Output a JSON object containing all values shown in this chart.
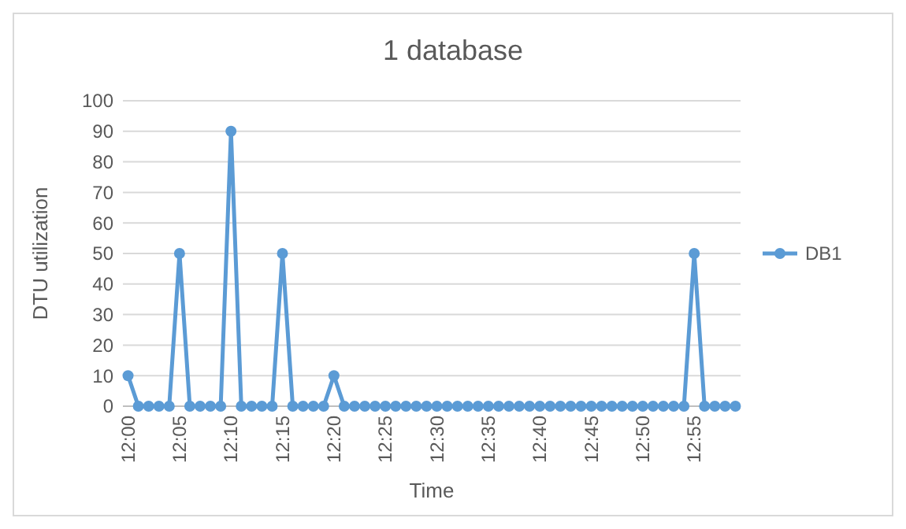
{
  "chart_data": {
    "type": "line",
    "title": "1 database",
    "xlabel": "Time",
    "ylabel": "DTU utilization",
    "categories": [
      "12:00",
      null,
      null,
      null,
      null,
      "12:05",
      null,
      null,
      null,
      null,
      "12:10",
      null,
      null,
      null,
      null,
      "12:15",
      null,
      null,
      null,
      null,
      "12:20",
      null,
      null,
      null,
      null,
      "12:25",
      null,
      null,
      null,
      null,
      "12:30",
      null,
      null,
      null,
      null,
      "12:35",
      null,
      null,
      null,
      null,
      "12:40",
      null,
      null,
      null,
      null,
      "12:45",
      null,
      null,
      null,
      null,
      "12:50",
      null,
      null,
      null,
      null,
      "12:55",
      null,
      null,
      null,
      null
    ],
    "series": [
      {
        "name": "DB1",
        "color": "#5b9bd5",
        "values": [
          10,
          0,
          0,
          0,
          0,
          50,
          0,
          0,
          0,
          0,
          90,
          0,
          0,
          0,
          0,
          50,
          0,
          0,
          0,
          0,
          10,
          0,
          0,
          0,
          0,
          0,
          0,
          0,
          0,
          0,
          0,
          0,
          0,
          0,
          0,
          0,
          0,
          0,
          0,
          0,
          0,
          0,
          0,
          0,
          0,
          0,
          0,
          0,
          0,
          0,
          0,
          0,
          0,
          0,
          0,
          50,
          0,
          0,
          0,
          0
        ]
      }
    ],
    "ylim": [
      0,
      100
    ],
    "yticks": [
      0,
      10,
      20,
      30,
      40,
      50,
      60,
      70,
      80,
      90,
      100
    ],
    "grid": "y",
    "legend": "right",
    "marker": "circle",
    "line_style": "solid"
  }
}
